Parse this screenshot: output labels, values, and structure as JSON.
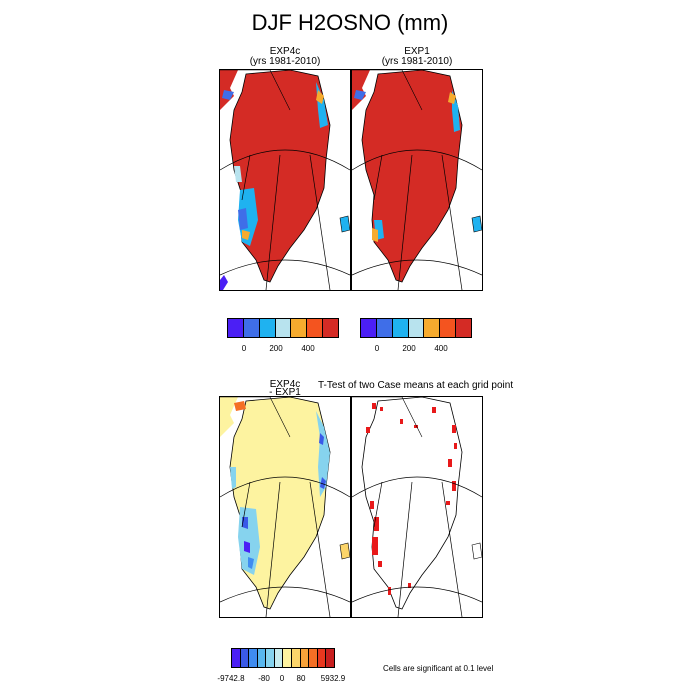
{
  "figure": {
    "title": "DJF H2OSNO (mm)"
  },
  "panels": [
    {
      "id": "exp4c",
      "label": "EXP4c",
      "sublabel": "(yrs 1981-2010)"
    },
    {
      "id": "exp1",
      "label": "EXP1",
      "sublabel": "(yrs 1981-2010)"
    },
    {
      "id": "diff",
      "label": "EXP4c",
      "sublabel": "- EXP1"
    },
    {
      "id": "ttest",
      "label": "T-Test of two Case means at each grid point",
      "sublabel": ""
    }
  ],
  "colorbars": {
    "top": {
      "colors": [
        "#4b1ff5",
        "#3f6ee8",
        "#1fb2f0",
        "#b8e3ee",
        "#f6ab2e",
        "#f4541f",
        "#d42b25"
      ],
      "tick_labels": [
        "0",
        "200",
        "400"
      ]
    },
    "bottom": {
      "colors": [
        "#4b1ff5",
        "#3a5ae8",
        "#3f8cf0",
        "#58b7ee",
        "#86d3ee",
        "#c8ecee",
        "#fdf3a0",
        "#fcd56a",
        "#f7a23a",
        "#f46f25",
        "#e9381f",
        "#c81f1f"
      ],
      "tick_labels": [
        "-9742.8",
        "-80",
        "0",
        "80",
        "5932.9"
      ]
    }
  },
  "footnote": "Cells are significant at 0.1 level",
  "chart_data": [
    {
      "type": "heatmap",
      "panel": "EXP4c (yrs 1981-2010)",
      "field": "H2OSNO",
      "units": "mm",
      "season": "DJF",
      "levels": [
        "0",
        "200",
        "400"
      ],
      "dominant_value": ">400 over ice sheet interior",
      "notes": "lower values (0-200) along southwest and east coastal margins"
    },
    {
      "type": "heatmap",
      "panel": "EXP1 (yrs 1981-2010)",
      "field": "H2OSNO",
      "units": "mm",
      "season": "DJF",
      "levels": [
        "0",
        "200",
        "400"
      ],
      "dominant_value": ">400 over ice sheet interior",
      "notes": "fewer low-value cells along margins than EXP4c"
    },
    {
      "type": "heatmap",
      "panel": "EXP4c - EXP1",
      "levels": [
        "-9742.8",
        "-80",
        "0",
        "80",
        "5932.9"
      ],
      "dominant_value": "near 0 over interior",
      "notes": "negative differences along southwest and east margins"
    },
    {
      "type": "heatmap",
      "panel": "T-Test of two Case means at each grid point",
      "notes": "red cells significant at 0.1 level, mainly along margins"
    }
  ]
}
